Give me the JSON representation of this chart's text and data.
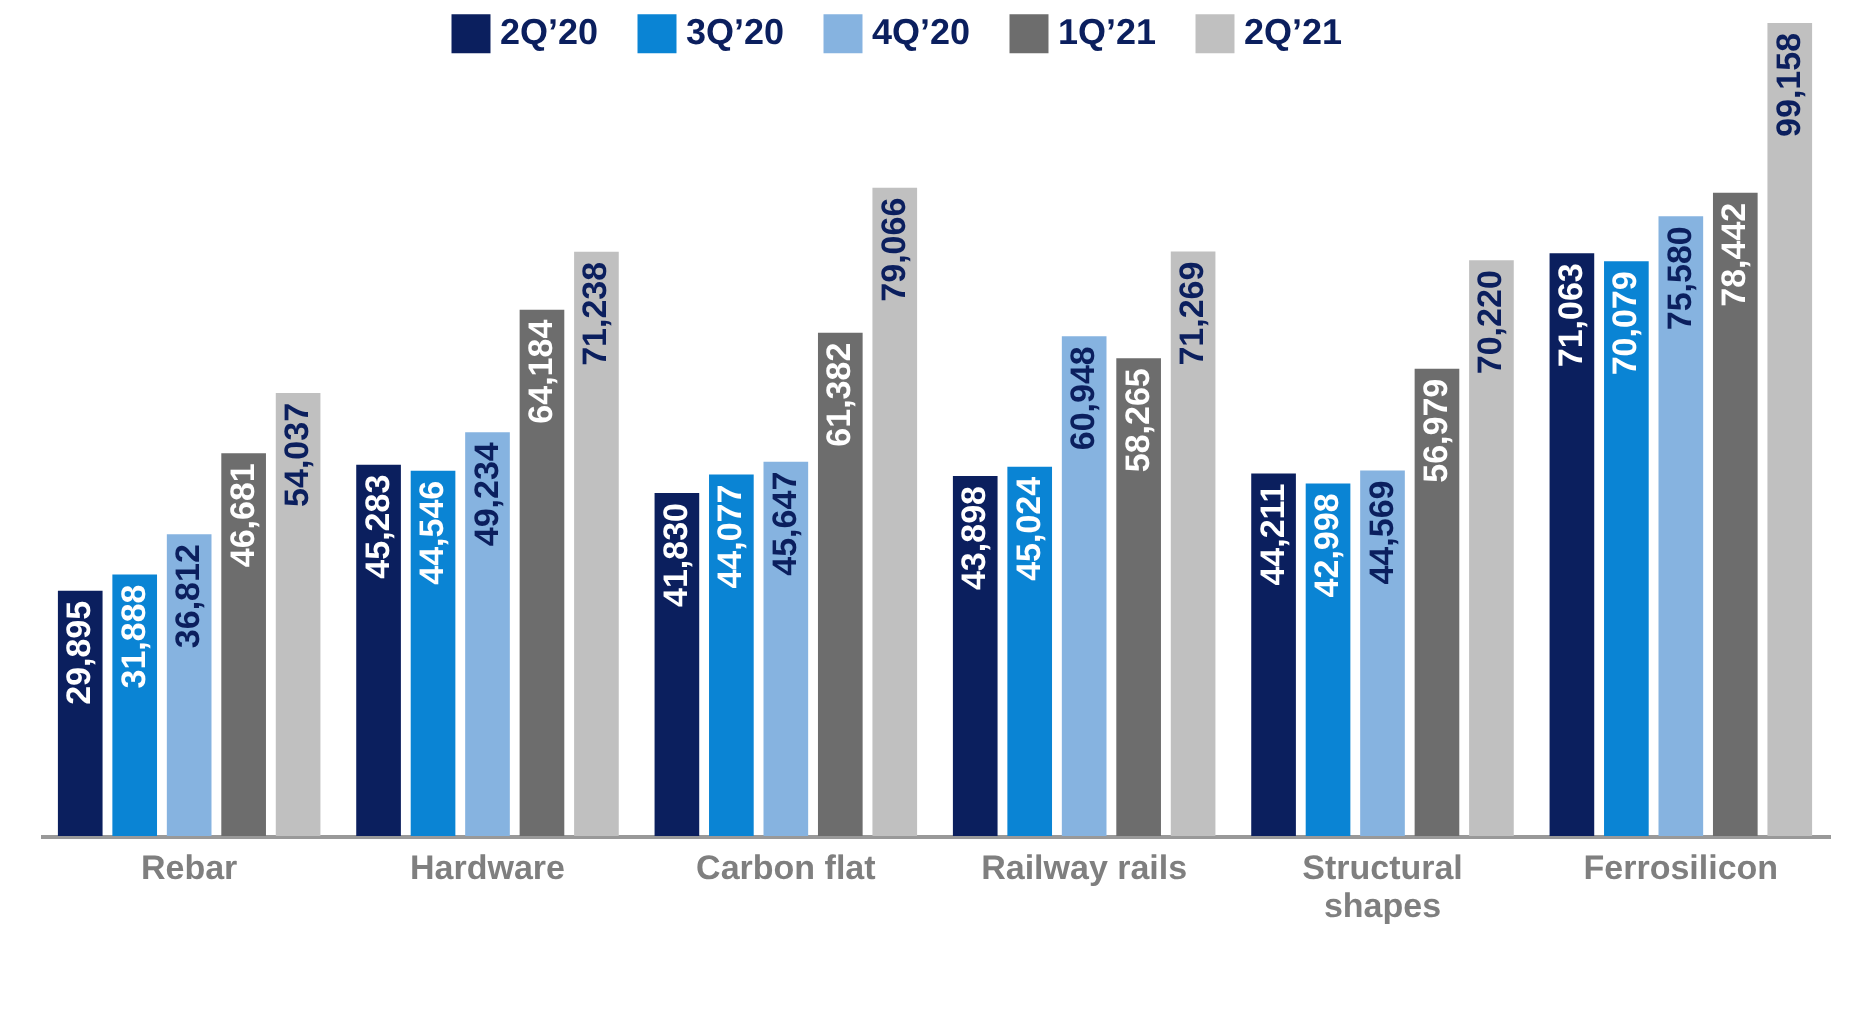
{
  "chart_data": {
    "type": "bar",
    "categories": [
      "Rebar",
      "Hardware",
      "Carbon flat",
      "Railway rails",
      "Structural shapes",
      "Ferrosilicon"
    ],
    "series": [
      {
        "name": "2Q’20",
        "color": "#0b1f5e",
        "values": [
          29895,
          45283,
          41830,
          43898,
          44211,
          71063
        ],
        "value_labels": [
          "29,895",
          "45,283",
          "41,830",
          "43,898",
          "44,211",
          "71,063"
        ]
      },
      {
        "name": "3Q’20",
        "color": "#0a84d4",
        "values": [
          31888,
          44546,
          44077,
          45024,
          42998,
          70079
        ],
        "value_labels": [
          "31,888",
          "44,546",
          "44,077",
          "45,024",
          "42,998",
          "70,079"
        ]
      },
      {
        "name": "4Q’20",
        "color": "#86b3e0",
        "values": [
          36812,
          49234,
          45647,
          60948,
          44569,
          75580
        ],
        "value_labels": [
          "36,812",
          "49,234",
          "45,647",
          "60,948",
          "44,569",
          "75,580"
        ]
      },
      {
        "name": "1Q’21",
        "color": "#6d6d6d",
        "values": [
          46681,
          64184,
          61382,
          58265,
          56979,
          78442
        ],
        "value_labels": [
          "46,681",
          "64,184",
          "61,382",
          "58,265",
          "56,979",
          "78,442"
        ]
      },
      {
        "name": "2Q’21",
        "color": "#c0c0c0",
        "values": [
          54037,
          71238,
          79066,
          71269,
          70220,
          99158
        ],
        "value_labels": [
          "54,037",
          "71,238",
          "79,066",
          "71,269",
          "70,220",
          "99,158"
        ]
      }
    ],
    "legend": "top"
  }
}
